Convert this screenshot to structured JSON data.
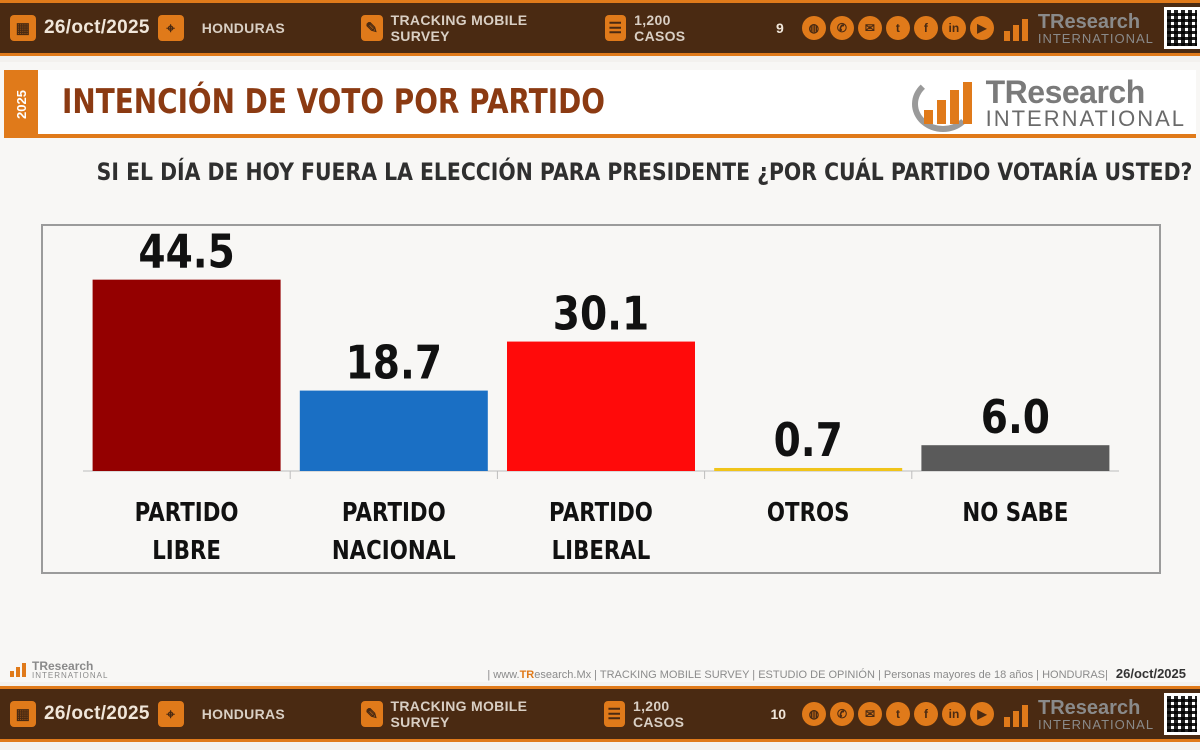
{
  "top_bar": {
    "date": "26/oct/2025",
    "country": "HONDURAS",
    "survey": "TRACKING MOBILE SURVEY",
    "cases": "1,200 CASOS",
    "page": "9",
    "logo_t1": "TResearch",
    "logo_t2": "INTERNATIONAL"
  },
  "bottom_bar": {
    "date": "26/oct/2025",
    "country": "HONDURAS",
    "survey": "TRACKING MOBILE SURVEY",
    "cases": "1,200 CASOS",
    "page": "10",
    "logo_t1": "TResearch",
    "logo_t2": "INTERNATIONAL"
  },
  "slide": {
    "year": "2025",
    "title": "INTENCIÓN DE VOTO POR PARTIDO",
    "logo_t1": "TResearch",
    "logo_t2": "INTERNATIONAL",
    "question": "SI EL DÍA DE HOY FUERA LA ELECCIÓN PARA PRESIDENTE ¿POR CUÁL PARTIDO VOTARÍA USTED?",
    "footer_logo_t1": "TResearch",
    "footer_logo_t2": "INTERNATIONAL",
    "footer_prefix": "| www.",
    "footer_brand": "TR",
    "footer_text": "esearch.Mx | TRACKING MOBILE SURVEY | ESTUDIO DE OPINIÓN | Personas mayores de 18 años | HONDURAS|",
    "footer_date": "26/oct/2025"
  },
  "colors": {
    "accent": "#e07a1a",
    "bar_dark": "#4a2a12",
    "title": "#8b3a12"
  },
  "chart_data": {
    "type": "bar",
    "categories": [
      [
        "PARTIDO",
        "LIBRE"
      ],
      [
        "PARTIDO",
        "NACIONAL"
      ],
      [
        "PARTIDO",
        "LIBERAL"
      ],
      [
        "OTROS"
      ],
      [
        "NO SABE"
      ]
    ],
    "values": [
      44.5,
      18.7,
      30.1,
      0.7,
      6.0
    ],
    "value_labels": [
      "44.5",
      "18.7",
      "30.1",
      "0.7",
      "6.0"
    ],
    "colors": [
      "#940000",
      "#1a6fc4",
      "#ff0a0a",
      "#f0c419",
      "#5a5a5a"
    ],
    "ylim": [
      0,
      50
    ],
    "grid": false,
    "legend": "none"
  }
}
